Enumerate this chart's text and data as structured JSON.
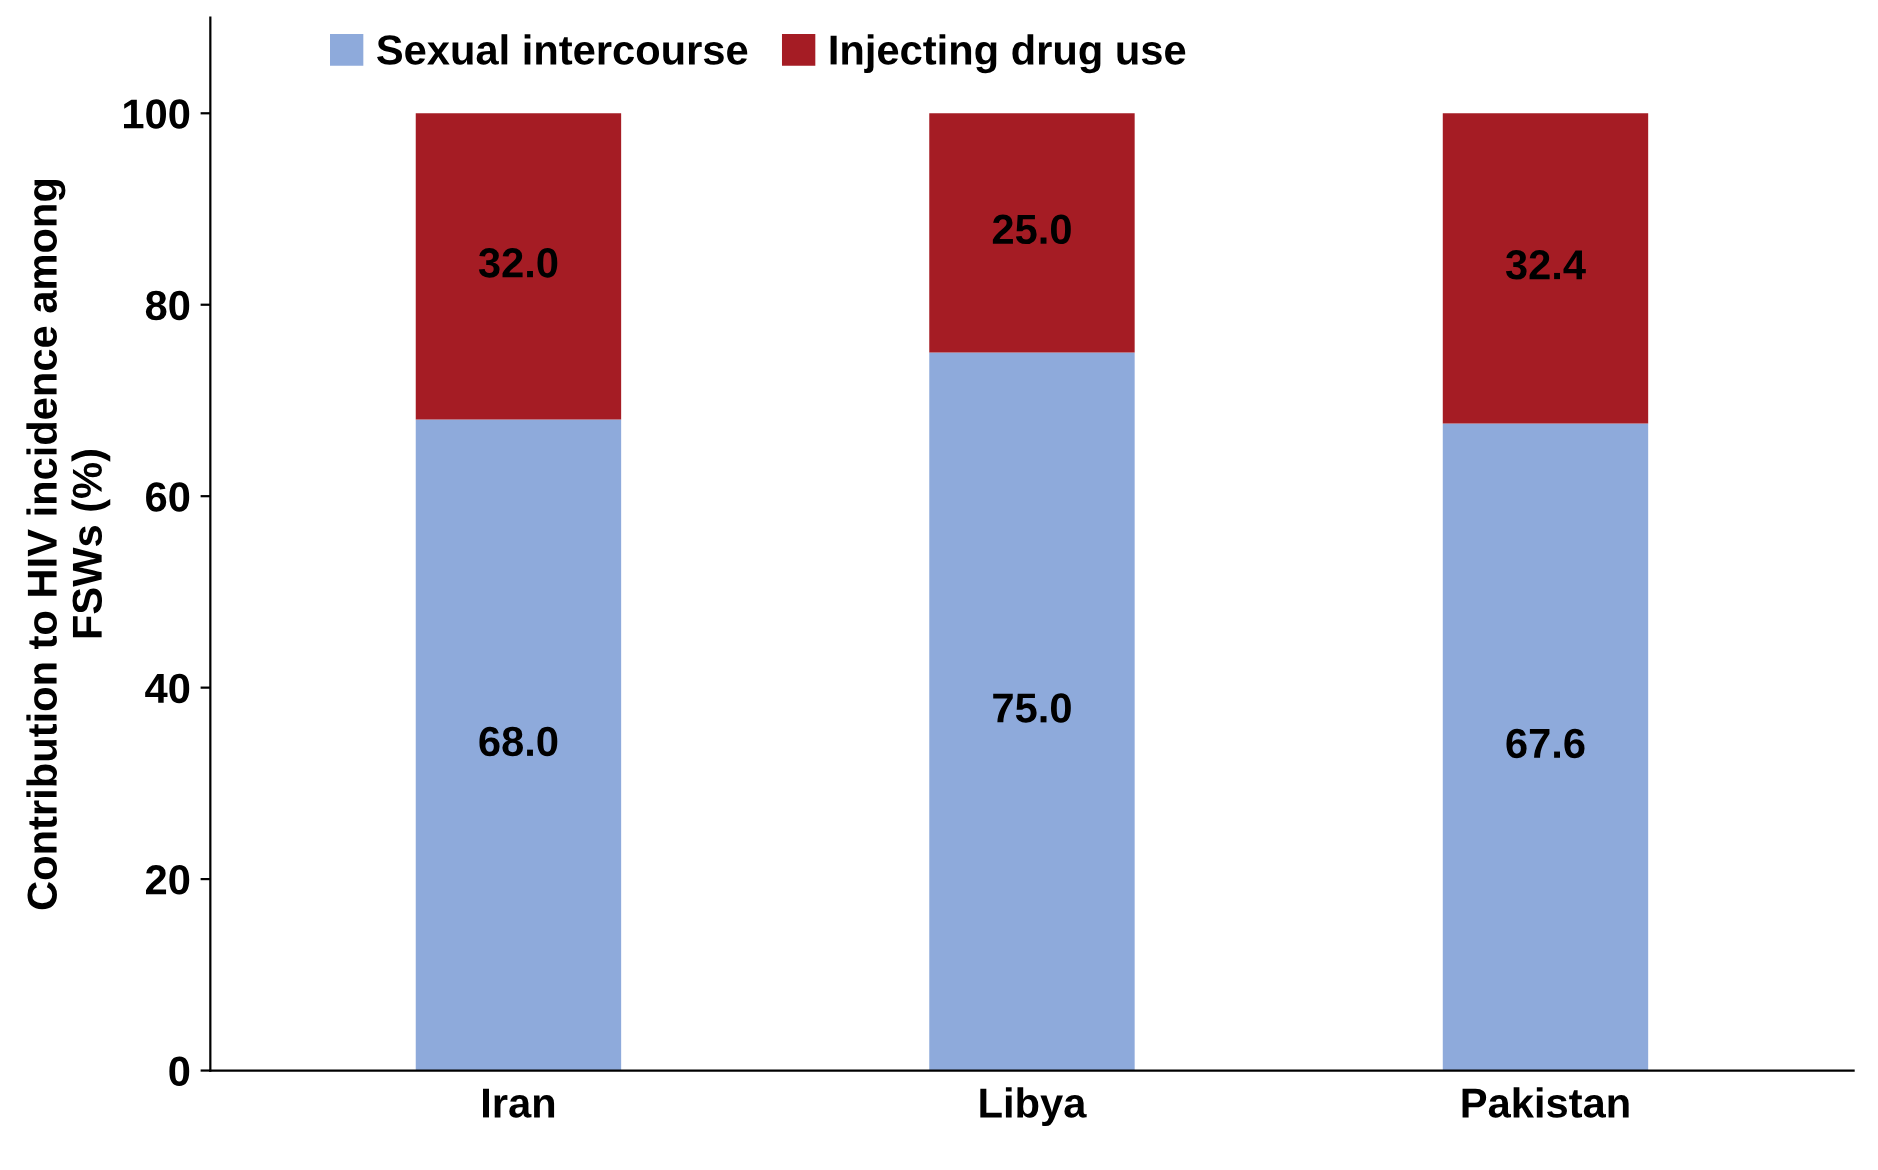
{
  "chart_data": {
    "type": "bar",
    "stacked": true,
    "ylabel": "Contribution to HIV incidence among\nFSWs (%)",
    "categories": [
      "Iran",
      "Libya",
      "Pakistan"
    ],
    "series": [
      {
        "name": "Sexual intercourse",
        "color": "#8eaadb",
        "values": [
          68.0,
          75.0,
          67.6
        ],
        "value_labels": [
          "68.0",
          "75.0",
          "67.6"
        ]
      },
      {
        "name": "Injecting drug use",
        "color": "#a51c24",
        "values": [
          32.0,
          25.0,
          32.4
        ],
        "value_labels": [
          "32.0",
          "25.0",
          "32.4"
        ]
      }
    ],
    "ylim": [
      0,
      110
    ],
    "yticks": [
      0,
      20,
      40,
      60,
      80,
      100
    ],
    "grid": false,
    "legend": "top left"
  }
}
